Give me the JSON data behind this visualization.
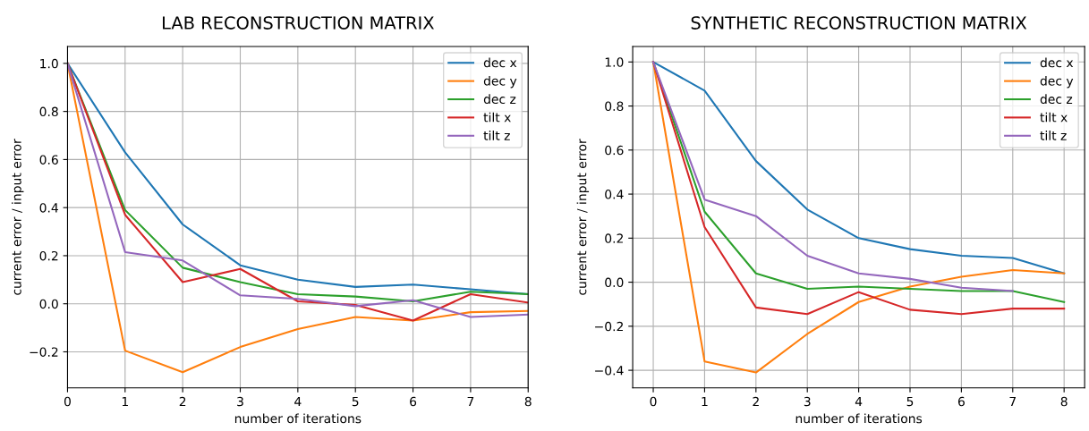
{
  "chart_data": [
    {
      "type": "line",
      "title": "LAB RECONSTRUCTION MATRIX",
      "xlabel": "number of iterations",
      "ylabel": "current error / input error",
      "x": [
        0,
        1,
        2,
        3,
        4,
        5,
        6,
        7,
        8
      ],
      "xlim": [
        0,
        8
      ],
      "xticks": [
        0,
        1,
        2,
        3,
        4,
        5,
        6,
        7,
        8
      ],
      "ylim": [
        -0.35,
        1.07
      ],
      "yticks": [
        {
          "value": -0.2,
          "label": "−0.2"
        },
        {
          "value": 0,
          "label": "0.0"
        },
        0.2,
        0.4,
        0.6,
        0.8,
        {
          "value": 1,
          "label": "1.0"
        }
      ],
      "grid": true,
      "legend": "top right",
      "series": [
        {
          "name": "dec x",
          "color": "#1f77b4",
          "values": [
            1,
            0.63,
            0.33,
            0.16,
            0.1,
            0.07,
            0.08,
            0.06,
            0.04
          ]
        },
        {
          "name": "dec y",
          "color": "#ff7f0e",
          "values": [
            1,
            -0.195,
            -0.285,
            -0.18,
            -0.105,
            -0.055,
            -0.07,
            -0.035,
            -0.03
          ]
        },
        {
          "name": "dec z",
          "color": "#2ca02c",
          "values": [
            1,
            0.39,
            0.15,
            0.09,
            0.04,
            0.03,
            0.01,
            0.05,
            0.04
          ]
        },
        {
          "name": "tilt x",
          "color": "#d62728",
          "values": [
            1,
            0.37,
            0.09,
            0.145,
            0.01,
            -0.005,
            -0.07,
            0.04,
            0.005
          ]
        },
        {
          "name": "tilt z",
          "color": "#9467bd",
          "values": [
            1,
            0.215,
            0.18,
            0.035,
            0.02,
            -0.01,
            0.015,
            -0.055,
            -0.045
          ]
        }
      ]
    },
    {
      "type": "line",
      "title": "SYNTHETIC RECONSTRUCTION MATRIX",
      "xlabel": "number of iterations",
      "ylabel": "current error / input error",
      "x": [
        0,
        1,
        2,
        3,
        4,
        5,
        6,
        7,
        8
      ],
      "xlim": [
        -0.4,
        8.4
      ],
      "xticks": [
        0,
        1,
        2,
        3,
        4,
        5,
        6,
        7,
        8
      ],
      "ylim": [
        -0.48,
        1.07
      ],
      "yticks": [
        {
          "value": -0.4,
          "label": "−0.4"
        },
        {
          "value": -0.2,
          "label": "−0.2"
        },
        {
          "value": 0,
          "label": "0.0"
        },
        0.2,
        0.4,
        0.6,
        0.8,
        {
          "value": 1,
          "label": "1.0"
        }
      ],
      "grid": true,
      "legend": "top right",
      "series": [
        {
          "name": "dec x",
          "color": "#1f77b4",
          "values": [
            1,
            0.87,
            0.55,
            0.33,
            0.2,
            0.15,
            0.12,
            0.11,
            0.04
          ]
        },
        {
          "name": "dec y",
          "color": "#ff7f0e",
          "values": [
            1,
            -0.36,
            -0.41,
            -0.235,
            -0.09,
            -0.02,
            0.025,
            0.055,
            0.04
          ]
        },
        {
          "name": "dec z",
          "color": "#2ca02c",
          "values": [
            1,
            0.32,
            0.04,
            -0.03,
            -0.02,
            -0.03,
            -0.04,
            -0.04,
            -0.09
          ]
        },
        {
          "name": "tilt x",
          "color": "#d62728",
          "values": [
            1,
            0.25,
            -0.115,
            -0.145,
            -0.045,
            -0.125,
            -0.145,
            -0.12,
            -0.12
          ]
        },
        {
          "name": "tilt z",
          "color": "#9467bd",
          "values": [
            1,
            0.375,
            0.3,
            0.12,
            0.04,
            0.015,
            -0.025,
            -0.04,
            null
          ]
        }
      ]
    }
  ]
}
